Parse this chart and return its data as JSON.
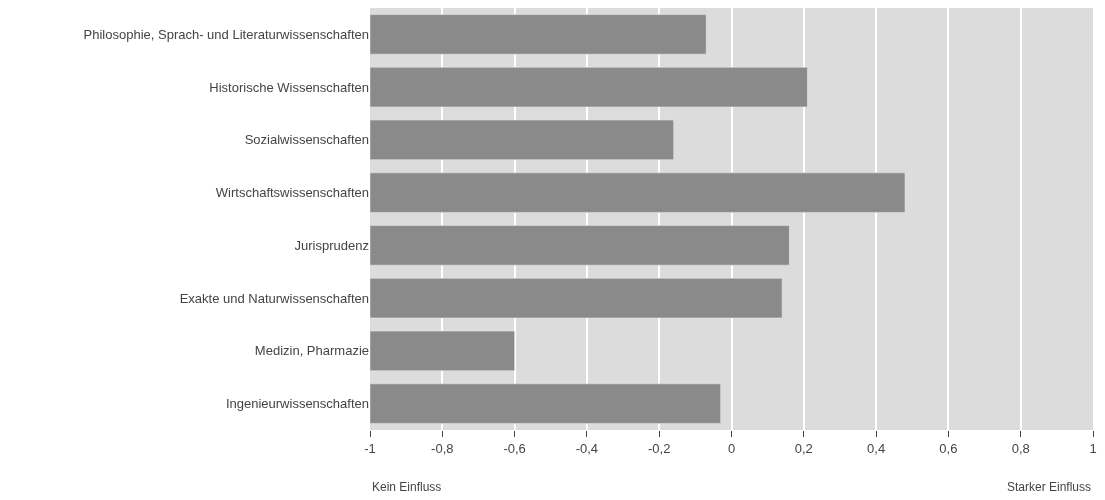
{
  "chart_data": {
    "type": "bar",
    "orientation": "horizontal",
    "categories": [
      "Philosophie, Sprach- und Literaturwissenschaften",
      "Historische Wissenschaften",
      "Sozialwissenschaften",
      "Wirtschaftswissenschaften",
      "Jurisprudenz",
      "Exakte und Naturwissenschaften",
      "Medizin, Pharmazie",
      "Ingenieurwissenschaften"
    ],
    "base": [
      -1,
      -1,
      -1,
      -1,
      -1,
      -1,
      -1,
      -1
    ],
    "values": [
      0.93,
      1.21,
      0.84,
      1.48,
      1.16,
      1.14,
      0.4,
      0.97
    ],
    "color": "#8a8a8a",
    "xlim": [
      -1,
      1
    ],
    "xticks": [
      {
        "value": -1,
        "label": "-1"
      },
      {
        "value": -0.8,
        "label": "-0,8"
      },
      {
        "value": -0.6,
        "label": "-0,6"
      },
      {
        "value": -0.4,
        "label": "-0,4"
      },
      {
        "value": -0.2,
        "label": "-0,2"
      },
      {
        "value": 0,
        "label": "0"
      },
      {
        "value": 0.2,
        "label": "0,2"
      },
      {
        "value": 0.4,
        "label": "0,4"
      },
      {
        "value": 0.6,
        "label": "0,6"
      },
      {
        "value": 0.8,
        "label": "0,8"
      },
      {
        "value": 1,
        "label": "1"
      }
    ],
    "grid": "x",
    "annotations": [
      "Kein Einfluss",
      "Starker Einfluss"
    ]
  }
}
